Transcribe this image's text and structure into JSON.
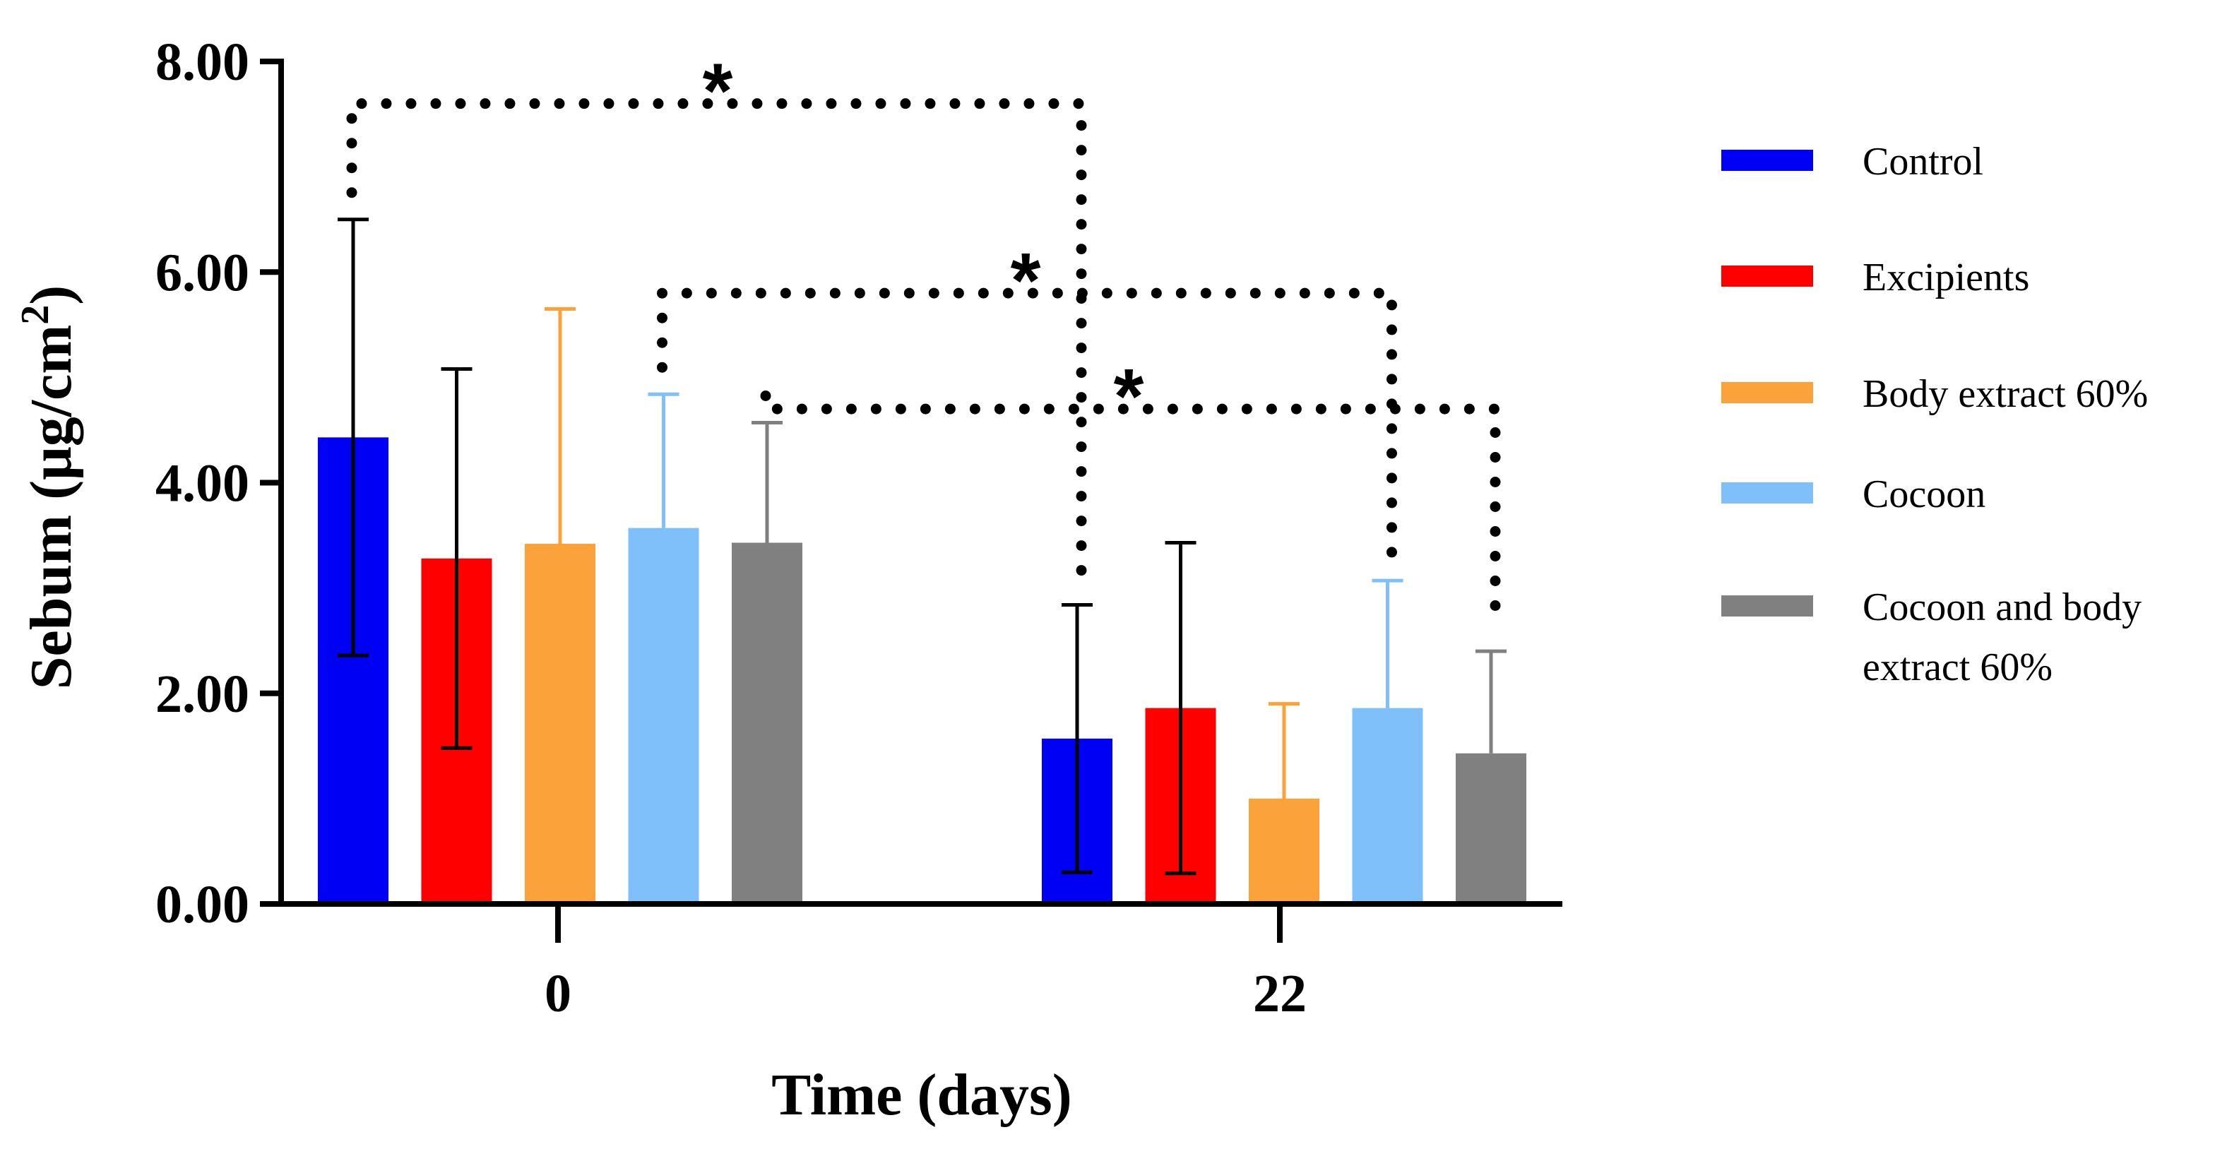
{
  "chart_data": {
    "type": "bar",
    "xlabel": "Time (days)",
    "ylabel": "Sebum (μg/cm²)",
    "ylabel_parts": {
      "main": "Sebum (μg/cm",
      "sup": "2",
      "tail": ")"
    },
    "ylim": [
      0,
      8
    ],
    "yticks": [
      "0.00",
      "2.00",
      "4.00",
      "6.00",
      "8.00"
    ],
    "categories": [
      "0",
      "22"
    ],
    "series": [
      {
        "name": "Control",
        "color": "#0000F5",
        "values": [
          4.43,
          1.57
        ],
        "errors": [
          2.07,
          1.27
        ]
      },
      {
        "name": "Excipients",
        "color": "#FF0000",
        "values": [
          3.28,
          1.86
        ],
        "errors": [
          1.8,
          1.57
        ]
      },
      {
        "name": "Body extract 60%",
        "color": "#FBA23A",
        "values": [
          3.42,
          1.0
        ],
        "errors": [
          2.23,
          0.9
        ]
      },
      {
        "name": "Cocoon",
        "color": "#7FC0FA",
        "values": [
          3.57,
          1.86
        ],
        "errors": [
          1.27,
          1.21
        ]
      },
      {
        "name": "Cocoon and body extract 60%",
        "color": "#808080",
        "values": [
          3.43,
          1.43
        ],
        "errors": [
          1.14,
          0.97
        ]
      }
    ],
    "legend_lines": [
      [
        "Control"
      ],
      [
        "Excipients"
      ],
      [
        "Body extract 60%"
      ],
      [
        "Cocoon"
      ],
      [
        "Cocoon and body",
        "extract 60%"
      ]
    ],
    "legend_position": "right",
    "error_bar_style": "upper-only for light colored bars, two-sided for dark bars",
    "significance": [
      {
        "label": "*",
        "from_series": 0,
        "from_category": 0,
        "to_series": 0,
        "to_category": 1,
        "y": 7.6
      },
      {
        "label": "*",
        "from_series": 3,
        "from_category": 0,
        "to_series": 3,
        "to_category": 1,
        "y": 5.8
      },
      {
        "label": "*",
        "from_series": 4,
        "from_category": 0,
        "to_series": 4,
        "to_category": 1,
        "y": 4.7
      }
    ]
  }
}
